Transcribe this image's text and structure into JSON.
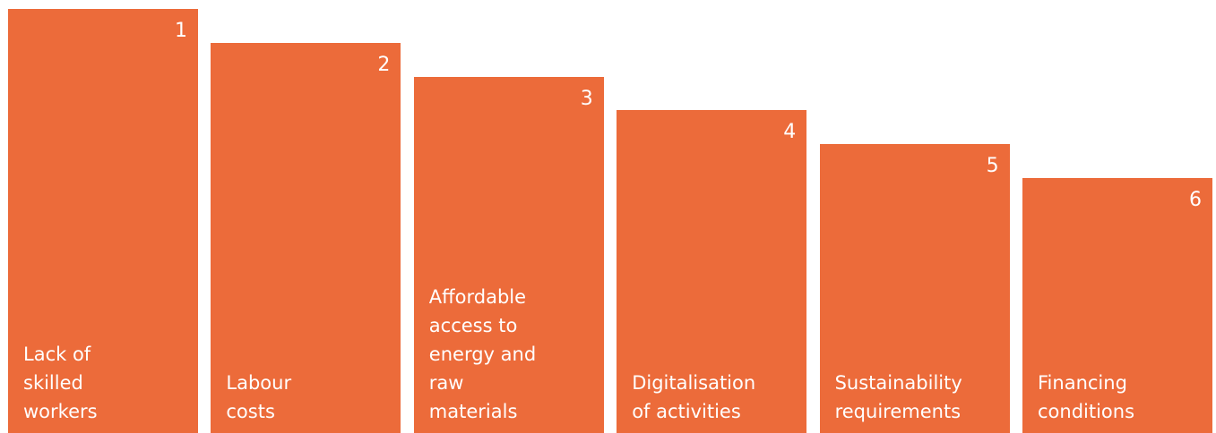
{
  "items": [
    {
      "rank": "1",
      "label_lines": [
        "Lack of",
        "skilled",
        "workers"
      ]
    },
    {
      "rank": "2",
      "label_lines": [
        "Labour",
        "costs"
      ]
    },
    {
      "rank": "3",
      "label_lines": [
        "Affordable",
        "access to",
        "energy and",
        "raw",
        "materials"
      ]
    },
    {
      "rank": "4",
      "label_lines": [
        "Digitalisation",
        "of activities"
      ]
    },
    {
      "rank": "5",
      "label_lines": [
        "Sustainability",
        "requirements"
      ]
    },
    {
      "rank": "6",
      "label_lines": [
        "Financing",
        "conditions"
      ]
    }
  ]
}
